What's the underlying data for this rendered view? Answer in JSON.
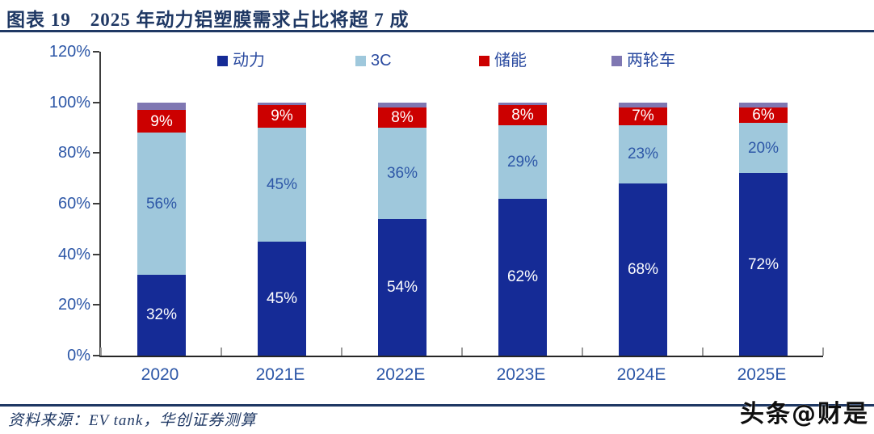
{
  "title": "图表 19　2025 年动力铝塑膜需求占比将超 7 成",
  "source": "资料来源：EV tank，华创证券测算",
  "watermark": "头条@财是",
  "colors": {
    "title_navy": "#1F3864",
    "axis_label_blue": "#2D57A7",
    "axis_line": "#3d3d3d",
    "series_power": "#152B96",
    "series_3c": "#9FC8DC",
    "series_storage": "#CC0000",
    "series_twowheel": "#7F77B2"
  },
  "chart_data": {
    "type": "bar",
    "stacked": true,
    "title": "2025 年动力铝塑膜需求占比将超 7 成",
    "categories": [
      "2020",
      "2021E",
      "2022E",
      "2023E",
      "2024E",
      "2025E"
    ],
    "series": [
      {
        "name": "动力",
        "color": "#152B96",
        "values": [
          32,
          45,
          54,
          62,
          68,
          72
        ],
        "data_labels": true,
        "label_color": "#FFFFFF"
      },
      {
        "name": "3C",
        "color": "#9FC8DC",
        "values": [
          56,
          45,
          36,
          29,
          23,
          20
        ],
        "data_labels": true,
        "label_color": "#2D57A7"
      },
      {
        "name": "储能",
        "color": "#CC0000",
        "values": [
          9,
          9,
          8,
          8,
          7,
          6
        ],
        "data_labels": true,
        "label_color": "#FFFFFF"
      },
      {
        "name": "两轮车",
        "color": "#7F77B2",
        "values": [
          3,
          1,
          2,
          1,
          2,
          2
        ],
        "data_labels": false,
        "label_color": "#FFFFFF"
      }
    ],
    "y_ticks": [
      "0%",
      "20%",
      "40%",
      "60%",
      "80%",
      "100%",
      "120%"
    ],
    "ylim": [
      0,
      120
    ],
    "y_unit": "%",
    "grid": false,
    "legend_position": "top"
  }
}
